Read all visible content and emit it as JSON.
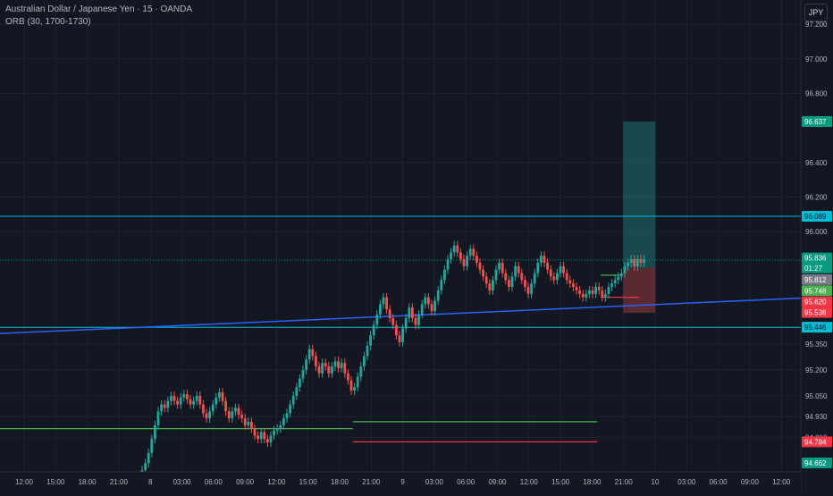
{
  "header": {
    "symbol_line": "Australian Dollar / Japanese Yen · 15 · OANDA",
    "indicator_line": "ORB (30, 1700-1730)"
  },
  "currency_button": "JPY",
  "colors": {
    "background": "#131722",
    "grid": "#1e222d",
    "up_candle": "#26a69a",
    "down_candle": "#ef5350",
    "cyan_line": "#00bcd4",
    "trend_line": "#2962ff",
    "orb_high": "#4caf50",
    "orb_low": "#f23645"
  },
  "chart_data": {
    "type": "candlestick",
    "ylim": [
      94.61,
      97.34
    ],
    "y_ticks": [
      "97.200",
      "97.000",
      "96.800",
      "96.400",
      "96.200",
      "96.000",
      "95.350",
      "95.200",
      "95.050",
      "94.930",
      "94.810"
    ],
    "x_ticks": [
      "12:00",
      "15:00",
      "18:00",
      "21:00",
      "8",
      "03:00",
      "06:00",
      "09:00",
      "12:00",
      "15:00",
      "18:00",
      "21:00",
      "9",
      "03:00",
      "06:00",
      "09:00",
      "12:00",
      "15:00",
      "18:00",
      "21:00",
      "10",
      "03:00",
      "06:00",
      "09:00",
      "12:00"
    ],
    "price_labels": [
      {
        "text": "96.637",
        "price": 96.637,
        "bg": "#089981",
        "fg": "#ffffff"
      },
      {
        "text": "96.089",
        "price": 96.089,
        "bg": "#00bcd4",
        "fg": "#131722"
      },
      {
        "text": "95.836",
        "price": 95.848,
        "bg": "#089981",
        "fg": "#ffffff"
      },
      {
        "text": "01:27",
        "price": 95.79,
        "bg": "#089981",
        "fg": "#ffffff"
      },
      {
        "text": "95.812",
        "price": 95.722,
        "bg": "#787b86",
        "fg": "#ffffff"
      },
      {
        "text": "95.748",
        "price": 95.658,
        "bg": "#4caf50",
        "fg": "#ffffff"
      },
      {
        "text": "95.620",
        "price": 95.594,
        "bg": "#f23645",
        "fg": "#ffffff"
      },
      {
        "text": "95.536",
        "price": 95.532,
        "bg": "#f23645",
        "fg": "#ffffff"
      },
      {
        "text": "95.446",
        "price": 95.447,
        "bg": "#00bcd4",
        "fg": "#131722"
      },
      {
        "text": "94.784",
        "price": 94.784,
        "bg": "#f23645",
        "fg": "#ffffff"
      },
      {
        "text": "94.662",
        "price": 94.662,
        "bg": "#089981",
        "fg": "#ffffff"
      }
    ],
    "horizontal_lines": [
      {
        "price": 96.089,
        "color": "#00bcd4"
      },
      {
        "price": 95.446,
        "color": "#00bcd4"
      },
      {
        "price": 95.836,
        "color": "#089981",
        "dotted": true
      }
    ],
    "trend_line": {
      "from": {
        "bar": -1,
        "price": 95.42
      },
      "to": {
        "bar": 260,
        "price": 95.615
      },
      "color": "#2962ff"
    },
    "orb_levels": [
      {
        "start_bar": 0,
        "end_bar": 68,
        "price": 94.86,
        "color": "#4caf50"
      },
      {
        "start_bar": 68,
        "end_bar": 144,
        "price": 94.9,
        "color": "#4caf50"
      },
      {
        "start_bar": 68,
        "end_bar": 144,
        "price": 94.784,
        "color": "#f23645"
      },
      {
        "start_bar": 145,
        "end_bar": 151,
        "price": 95.748,
        "color": "#4caf50"
      },
      {
        "start_bar": 145,
        "end_bar": 157,
        "price": 95.62,
        "color": "#f23645"
      }
    ],
    "position_tool": {
      "start_bar": 152,
      "end_bar": 162,
      "entry": 95.79,
      "target": 96.637,
      "stop": 95.53
    },
    "candles": {
      "open": [
        94.52,
        94.55,
        94.58,
        94.62,
        94.66,
        94.72,
        94.8,
        94.88,
        94.96,
        95.0,
        94.98,
        95.02,
        95.05,
        95.02,
        95.0,
        95.04,
        95.06,
        95.03,
        95.0,
        95.02,
        95.05,
        95.0,
        94.95,
        94.92,
        94.96,
        95.0,
        95.04,
        95.07,
        95.02,
        94.96,
        94.92,
        94.96,
        94.98,
        94.94,
        94.92,
        94.88,
        94.9,
        94.86,
        94.82,
        94.8,
        94.84,
        94.8,
        94.78,
        94.82,
        94.85,
        94.86,
        94.88,
        94.92,
        94.95,
        95.0,
        95.05,
        95.1,
        95.15,
        95.2,
        95.26,
        95.32,
        95.28,
        95.22,
        95.18,
        95.24,
        95.22,
        95.18,
        95.22,
        95.25,
        95.21,
        95.24,
        95.18,
        95.14,
        95.08,
        95.1,
        95.16,
        95.22,
        95.28,
        95.34,
        95.4,
        95.46,
        95.52,
        95.58,
        95.62,
        95.55,
        95.5,
        95.46,
        95.4,
        95.36,
        95.44,
        95.5,
        95.56,
        95.5,
        95.46,
        95.52,
        95.58,
        95.62,
        95.58,
        95.54,
        95.6,
        95.66,
        95.72,
        95.78,
        95.84,
        95.88,
        95.92,
        95.88,
        95.84,
        95.8,
        95.86,
        95.9,
        95.86,
        95.82,
        95.78,
        95.74,
        95.7,
        95.66,
        95.72,
        95.78,
        95.82,
        95.76,
        95.72,
        95.68,
        95.74,
        95.8,
        95.76,
        95.72,
        95.68,
        95.64,
        95.7,
        95.76,
        95.82,
        95.86,
        95.82,
        95.78,
        95.74,
        95.72,
        95.76,
        95.8,
        95.76,
        95.72,
        95.7,
        95.68,
        95.66,
        95.64,
        95.62,
        95.64,
        95.66,
        95.64,
        95.68,
        95.66,
        95.62,
        95.64,
        95.68,
        95.7,
        95.72,
        95.74,
        95.76,
        95.8,
        95.82,
        95.84,
        95.8,
        95.84,
        95.82
      ],
      "close": [
        94.55,
        94.58,
        94.62,
        94.66,
        94.72,
        94.8,
        94.88,
        94.96,
        95.0,
        94.98,
        95.02,
        95.05,
        95.02,
        95.0,
        95.04,
        95.06,
        95.03,
        95.0,
        95.02,
        95.05,
        95.0,
        94.95,
        94.92,
        94.96,
        95.0,
        95.04,
        95.07,
        95.02,
        94.96,
        94.92,
        94.96,
        94.98,
        94.94,
        94.92,
        94.88,
        94.9,
        94.86,
        94.82,
        94.8,
        94.84,
        94.8,
        94.78,
        94.82,
        94.85,
        94.86,
        94.88,
        94.92,
        94.95,
        95.0,
        95.05,
        95.1,
        95.15,
        95.2,
        95.26,
        95.32,
        95.28,
        95.22,
        95.18,
        95.24,
        95.22,
        95.18,
        95.22,
        95.25,
        95.21,
        95.24,
        95.18,
        95.14,
        95.08,
        95.1,
        95.16,
        95.22,
        95.28,
        95.34,
        95.4,
        95.46,
        95.52,
        95.58,
        95.62,
        95.55,
        95.5,
        95.46,
        95.4,
        95.36,
        95.44,
        95.5,
        95.56,
        95.5,
        95.46,
        95.52,
        95.58,
        95.62,
        95.58,
        95.54,
        95.6,
        95.66,
        95.72,
        95.78,
        95.84,
        95.88,
        95.92,
        95.88,
        95.84,
        95.8,
        95.86,
        95.9,
        95.86,
        95.82,
        95.78,
        95.74,
        95.7,
        95.66,
        95.72,
        95.78,
        95.82,
        95.76,
        95.72,
        95.68,
        95.74,
        95.8,
        95.76,
        95.72,
        95.68,
        95.64,
        95.7,
        95.76,
        95.82,
        95.86,
        95.82,
        95.78,
        95.74,
        95.72,
        95.76,
        95.8,
        95.76,
        95.72,
        95.7,
        95.68,
        95.66,
        95.64,
        95.62,
        95.64,
        95.66,
        95.64,
        95.68,
        95.66,
        95.62,
        95.64,
        95.68,
        95.7,
        95.72,
        95.74,
        95.76,
        95.8,
        95.82,
        95.84,
        95.8,
        95.84,
        95.82,
        95.84
      ]
    }
  }
}
